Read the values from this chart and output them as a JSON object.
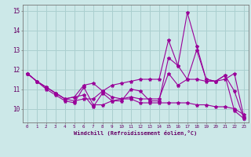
{
  "xlabel": "Windchill (Refroidissement éolien,°C)",
  "bg_color": "#cce8e8",
  "line_color": "#990099",
  "grid_color": "#aacfcf",
  "x_ticks": [
    0,
    1,
    2,
    3,
    4,
    5,
    6,
    7,
    8,
    9,
    10,
    11,
    12,
    13,
    14,
    15,
    16,
    17,
    18,
    19,
    20,
    21,
    22,
    23
  ],
  "ylim": [
    9.3,
    15.3
  ],
  "y_ticks": [
    10,
    11,
    12,
    13,
    14,
    15
  ],
  "lines": [
    {
      "x": [
        0,
        1,
        2,
        3,
        4,
        5,
        6,
        7,
        8,
        9,
        10,
        11,
        12,
        13,
        14,
        15,
        16,
        17,
        18,
        19,
        20,
        21,
        22,
        23
      ],
      "y": [
        11.8,
        11.4,
        11.1,
        10.8,
        10.5,
        10.6,
        10.7,
        10.1,
        10.8,
        10.4,
        10.4,
        11.0,
        10.9,
        10.4,
        10.4,
        12.6,
        12.2,
        14.9,
        13.2,
        11.5,
        11.4,
        11.5,
        11.8,
        9.6
      ]
    },
    {
      "x": [
        0,
        1,
        2,
        3,
        4,
        5,
        6,
        7,
        8,
        9,
        10,
        11,
        12,
        13,
        14,
        15,
        16,
        17,
        18,
        19,
        20,
        21,
        22,
        23
      ],
      "y": [
        11.8,
        11.4,
        11.1,
        10.8,
        10.5,
        10.6,
        11.2,
        11.3,
        10.9,
        11.2,
        11.3,
        11.4,
        11.5,
        11.5,
        11.5,
        13.5,
        12.2,
        11.5,
        13.0,
        11.5,
        11.4,
        11.7,
        9.9,
        9.5
      ]
    },
    {
      "x": [
        0,
        1,
        2,
        3,
        4,
        5,
        6,
        7,
        8,
        9,
        10,
        11,
        12,
        13,
        14,
        15,
        16,
        17,
        18,
        19,
        20,
        21,
        22,
        23
      ],
      "y": [
        11.8,
        11.4,
        11.0,
        10.7,
        10.4,
        10.3,
        11.1,
        10.2,
        10.2,
        10.4,
        10.5,
        10.6,
        10.5,
        10.5,
        10.5,
        11.8,
        11.2,
        11.5,
        11.5,
        11.4,
        11.4,
        11.7,
        10.9,
        9.5
      ]
    },
    {
      "x": [
        0,
        1,
        2,
        3,
        4,
        5,
        6,
        7,
        8,
        9,
        10,
        11,
        12,
        13,
        14,
        15,
        16,
        17,
        18,
        19,
        20,
        21,
        22,
        23
      ],
      "y": [
        11.8,
        11.4,
        11.1,
        10.8,
        10.5,
        10.4,
        10.5,
        10.5,
        10.9,
        10.6,
        10.5,
        10.5,
        10.3,
        10.3,
        10.3,
        10.3,
        10.3,
        10.3,
        10.2,
        10.2,
        10.1,
        10.1,
        10.0,
        9.7
      ]
    }
  ]
}
